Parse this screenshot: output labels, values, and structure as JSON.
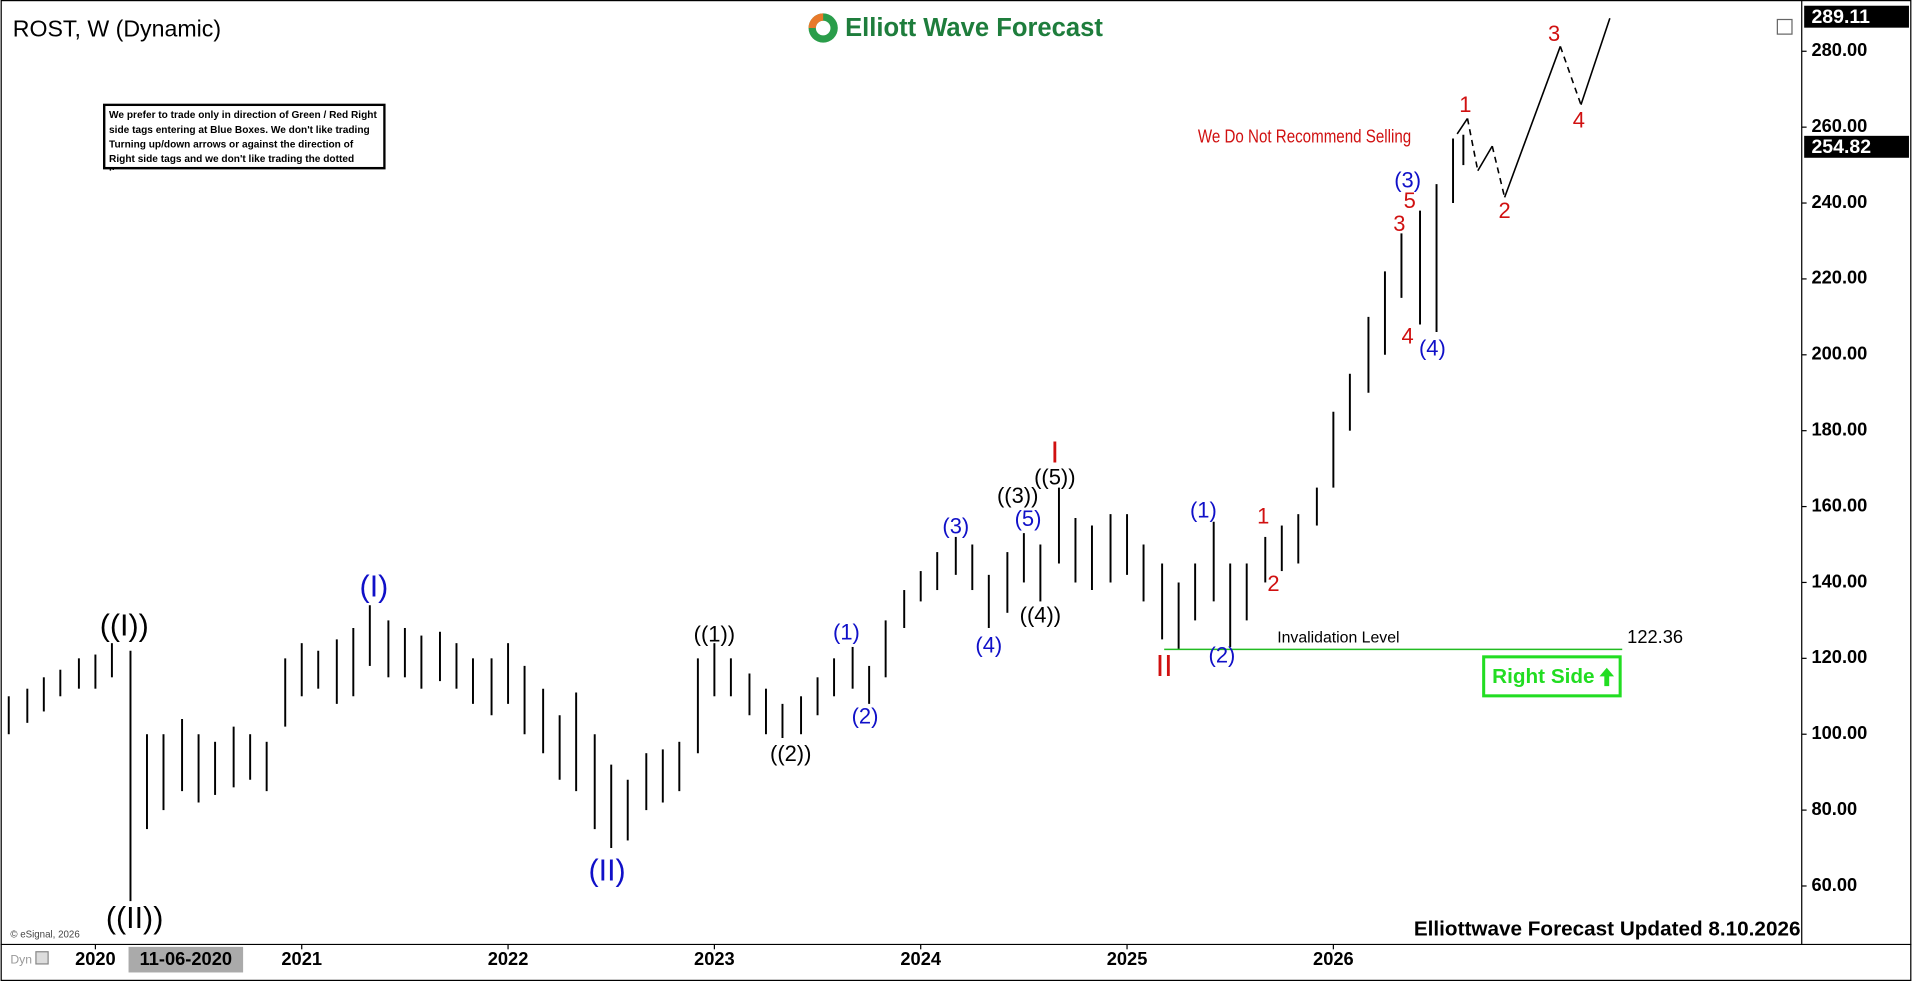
{
  "chart_data": {
    "type": "ohlc",
    "title": "ROST, W (Dynamic)",
    "logo": "Elliott Wave Forecast",
    "note": "We prefer to trade only in direction of Green / Red Right side tags entering at Blue Boxes. We don't like trading Turning up/down arrows or against the direction of Right side tags and we don't like trading the dotted lines.",
    "recommendation": "We Do Not Recommend Selling",
    "footer": "Elliottwave Forecast Updated 8.10.2026",
    "copyright": "© eSignal, 2026",
    "cursor_date": "11-06-2020",
    "mode": "Dyn",
    "right_side": "Right Side",
    "xlim": [
      2019.57,
      2028.27
    ],
    "xticks": [
      2020,
      2021,
      2022,
      2023,
      2024,
      2025,
      2026
    ],
    "ylim": [
      46.2,
      290.3
    ],
    "yticks": [
      {
        "value": 60,
        "label": "60.00"
      },
      {
        "value": 80,
        "label": "80.00"
      },
      {
        "value": 100,
        "label": "100.00"
      },
      {
        "value": 120,
        "label": "120.00"
      },
      {
        "value": 140,
        "label": "140.00"
      },
      {
        "value": 160,
        "label": "160.00"
      },
      {
        "value": 180,
        "label": "180.00"
      },
      {
        "value": 200,
        "label": "200.00"
      },
      {
        "value": 220,
        "label": "220.00"
      },
      {
        "value": 240,
        "label": "240.00"
      },
      {
        "value": 260,
        "label": "260.00"
      },
      {
        "value": 280,
        "label": "280.00"
      }
    ],
    "top_price": 289.11,
    "last_price": 254.82,
    "bar_color": "#000000",
    "bars": {
      "x": [
        2019.58,
        2019.67,
        2019.75,
        2019.83,
        2019.92,
        2020.0,
        2020.08,
        2020.17,
        2020.25,
        2020.33,
        2020.42,
        2020.5,
        2020.58,
        2020.67,
        2020.75,
        2020.83,
        2020.92,
        2021.0,
        2021.08,
        2021.17,
        2021.25,
        2021.33,
        2021.42,
        2021.5,
        2021.58,
        2021.67,
        2021.75,
        2021.83,
        2021.92,
        2022.0,
        2022.08,
        2022.17,
        2022.25,
        2022.33,
        2022.42,
        2022.5,
        2022.58,
        2022.67,
        2022.75,
        2022.83,
        2022.92,
        2023.0,
        2023.08,
        2023.17,
        2023.25,
        2023.33,
        2023.42,
        2023.5,
        2023.58,
        2023.67,
        2023.75,
        2023.83,
        2023.92,
        2024.0,
        2024.08,
        2024.17,
        2024.25,
        2024.33,
        2024.42,
        2024.5,
        2024.58,
        2024.67,
        2024.75,
        2024.83,
        2024.92,
        2025.0,
        2025.08,
        2025.17,
        2025.25,
        2025.33,
        2025.42,
        2025.5,
        2025.58,
        2025.67,
        2025.75,
        2025.83,
        2025.92,
        2026.0,
        2026.08,
        2026.17,
        2026.25,
        2026.33,
        2026.42,
        2026.5,
        2026.58,
        2026.63
      ],
      "low": [
        100,
        103,
        106,
        110,
        112,
        112,
        115,
        56,
        75,
        80,
        85,
        82,
        84,
        86,
        88,
        85,
        102,
        110,
        112,
        108,
        110,
        118,
        115,
        115,
        112,
        114,
        112,
        108,
        105,
        108,
        100,
        95,
        88,
        85,
        75,
        70,
        72,
        80,
        82,
        85,
        95,
        110,
        110,
        105,
        100,
        99,
        100,
        105,
        110,
        112,
        108,
        115,
        128,
        135,
        138,
        142,
        138,
        128,
        132,
        140,
        135,
        145,
        140,
        138,
        140,
        142,
        135,
        125,
        122.36,
        130,
        135,
        123,
        130,
        140,
        143,
        145,
        155,
        165,
        180,
        190,
        200,
        215,
        208,
        206,
        240,
        250
      ],
      "high": [
        110,
        112,
        115,
        117,
        120,
        121,
        124,
        122,
        100,
        100,
        104,
        100,
        98,
        102,
        100,
        98,
        120,
        124,
        122,
        125,
        128,
        134,
        130,
        128,
        126,
        127,
        124,
        120,
        120,
        124,
        118,
        112,
        105,
        111,
        100,
        92,
        88,
        95,
        96,
        98,
        120,
        124,
        120,
        116,
        112,
        108,
        110,
        115,
        120,
        123,
        118,
        130,
        138,
        143,
        148,
        152,
        150,
        142,
        148,
        153,
        150,
        165,
        157,
        155,
        158,
        158,
        150,
        145,
        140,
        145,
        156,
        145,
        145,
        152,
        155,
        158,
        165,
        185,
        195,
        210,
        222,
        232,
        238,
        245,
        257,
        258
      ]
    },
    "projection": {
      "x": [
        2026.6,
        2026.65,
        2026.7,
        2026.77,
        2026.83,
        2027.1,
        2027.2,
        2027.34
      ],
      "y": [
        258.2,
        262.3,
        248.5,
        255.0,
        241.5,
        281.3,
        265.9,
        288.7
      ],
      "color": "#000000"
    },
    "invalidation": {
      "label": "Invalidation Level",
      "value": 122.36,
      "x": [
        2025.18,
        2027.4
      ],
      "color": "#22bb22"
    },
    "annotations": [
      {
        "text": "((I))",
        "x": 2020.14,
        "y": 128.1,
        "color": "#000000"
      },
      {
        "text": "((II))",
        "x": 2020.19,
        "y": 51.0,
        "color": "#000000"
      },
      {
        "text": "(I)",
        "x": 2021.35,
        "y": 138.4,
        "color": "#1010c8"
      },
      {
        "text": "(II)",
        "x": 2022.48,
        "y": 63.6,
        "color": "#1010c8"
      },
      {
        "text": "((1))",
        "x": 2023.0,
        "y": 125.9,
        "color": "#000000"
      },
      {
        "text": "((2))",
        "x": 2023.37,
        "y": 94.4,
        "color": "#000000"
      },
      {
        "text": "(1)",
        "x": 2023.64,
        "y": 126.5,
        "color": "#1010c8"
      },
      {
        "text": "(2)",
        "x": 2023.73,
        "y": 104.3,
        "color": "#1010c8"
      },
      {
        "text": "(3)",
        "x": 2024.17,
        "y": 154.4,
        "color": "#1010c8"
      },
      {
        "text": "(4)",
        "x": 2024.33,
        "y": 123.0,
        "color": "#1010c8"
      },
      {
        "text": "(5)",
        "x": 2024.52,
        "y": 156.4,
        "color": "#1010c8"
      },
      {
        "text": "((3))",
        "x": 2024.47,
        "y": 162.5,
        "color": "#000000"
      },
      {
        "text": "((4))",
        "x": 2024.58,
        "y": 131.0,
        "color": "#000000"
      },
      {
        "text": "((5))",
        "x": 2024.65,
        "y": 167.3,
        "color": "#000000"
      },
      {
        "text": "I",
        "x": 2024.65,
        "y": 173.7,
        "color": "#d01010"
      },
      {
        "text": "II",
        "x": 2025.18,
        "y": 117.5,
        "color": "#d01010"
      },
      {
        "text": "(1)",
        "x": 2025.37,
        "y": 158.6,
        "color": "#1010c8"
      },
      {
        "text": "(2)",
        "x": 2025.46,
        "y": 120.4,
        "color": "#1010c8"
      },
      {
        "text": "1",
        "x": 2025.66,
        "y": 157.0,
        "color": "#d01010"
      },
      {
        "text": "2",
        "x": 2025.71,
        "y": 139.3,
        "color": "#d01010"
      },
      {
        "text": "3",
        "x": 2026.32,
        "y": 234.1,
        "color": "#d01010"
      },
      {
        "text": "4",
        "x": 2026.36,
        "y": 204.5,
        "color": "#d01010"
      },
      {
        "text": "5",
        "x": 2026.37,
        "y": 240.2,
        "color": "#d01010"
      },
      {
        "text": "(3)",
        "x": 2026.36,
        "y": 245.6,
        "color": "#1010c8"
      },
      {
        "text": "(4)",
        "x": 2026.48,
        "y": 201.3,
        "color": "#1010c8"
      },
      {
        "text": "1",
        "x": 2026.64,
        "y": 265.5,
        "color": "#d01010"
      },
      {
        "text": "2",
        "x": 2026.83,
        "y": 237.6,
        "color": "#d01010"
      },
      {
        "text": "3",
        "x": 2027.07,
        "y": 284.2,
        "color": "#d01010"
      },
      {
        "text": "4",
        "x": 2027.19,
        "y": 261.4,
        "color": "#d01010"
      }
    ]
  }
}
